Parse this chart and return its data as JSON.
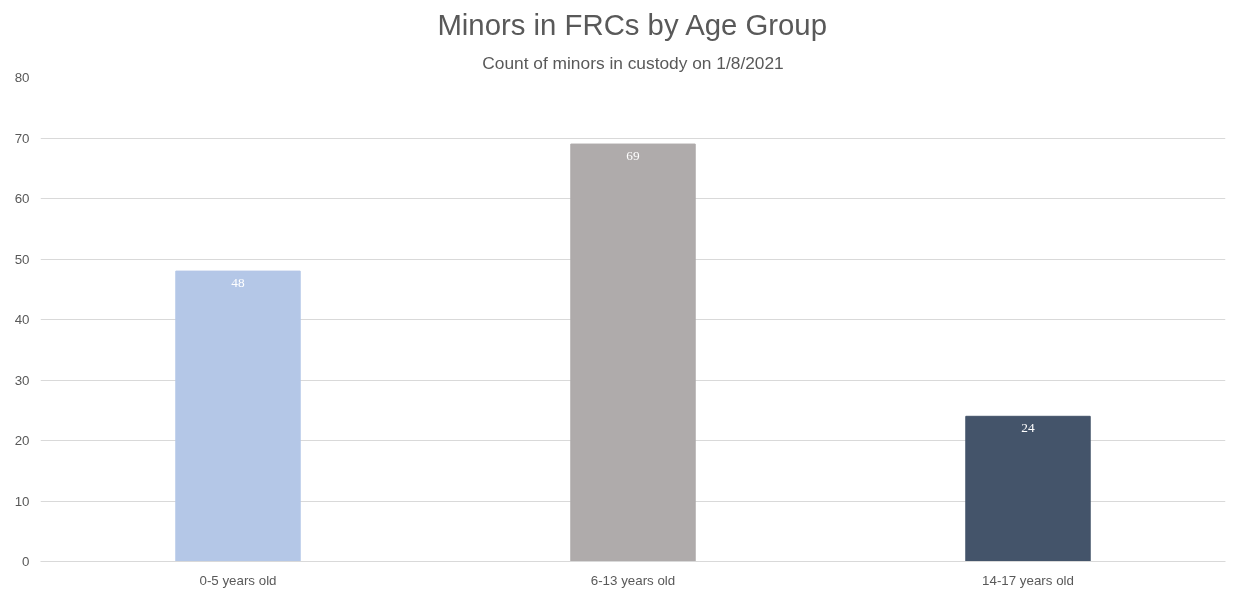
{
  "chart_data": {
    "type": "bar",
    "title": "Minors in FRCs by Age Group",
    "subtitle": "Count of minors in custody on 1/8/2021",
    "categories": [
      "0-5 years old",
      "6-13 years old",
      "14-17 years old"
    ],
    "values": [
      48,
      69,
      24
    ],
    "colors": [
      "#b4c7e7",
      "#afabab",
      "#44546a"
    ],
    "ylim": [
      0,
      80
    ],
    "yticks": [
      0,
      10,
      20,
      30,
      40,
      50,
      60,
      70,
      80
    ],
    "grid": "y",
    "data_labels": true
  }
}
